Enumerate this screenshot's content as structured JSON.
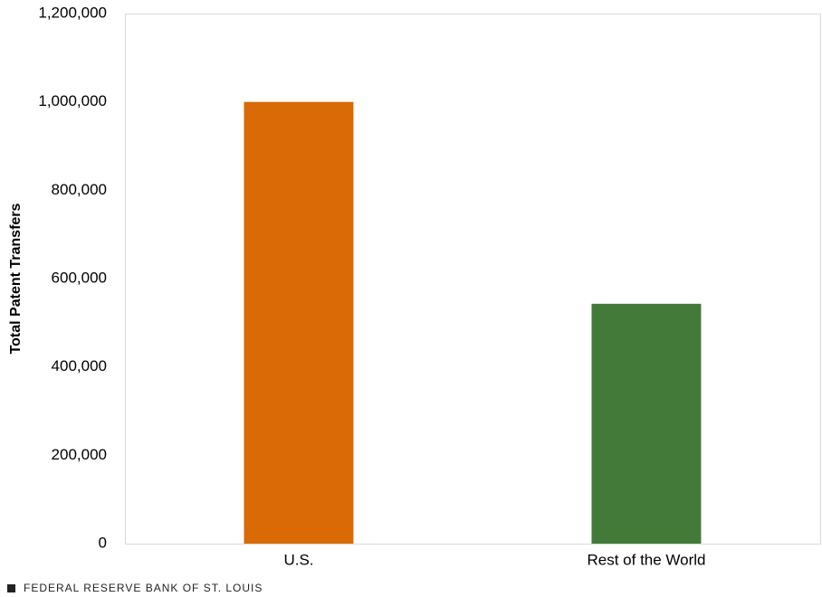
{
  "chart_data": {
    "type": "bar",
    "y_axis_label": "Total Patent Transfers",
    "categories": [
      "U.S.",
      "Rest of the World"
    ],
    "values": [
      1000000,
      543000
    ],
    "colors": [
      "#d96a06",
      "#437a3a"
    ],
    "ylim": [
      0,
      1200000
    ],
    "yticks": [
      0,
      {
        "value": 200000,
        "label": "200,000"
      },
      {
        "value": 400000,
        "label": "400,000"
      },
      {
        "value": 600000,
        "label": "600,000"
      },
      {
        "value": 800000,
        "label": "800,000"
      },
      {
        "value": 1000000,
        "label": "1,000,000"
      },
      {
        "value": 1200000,
        "label": "1,200,000"
      }
    ],
    "grid": false,
    "source": "FEDERAL RESERVE BANK OF ST. LOUIS"
  }
}
